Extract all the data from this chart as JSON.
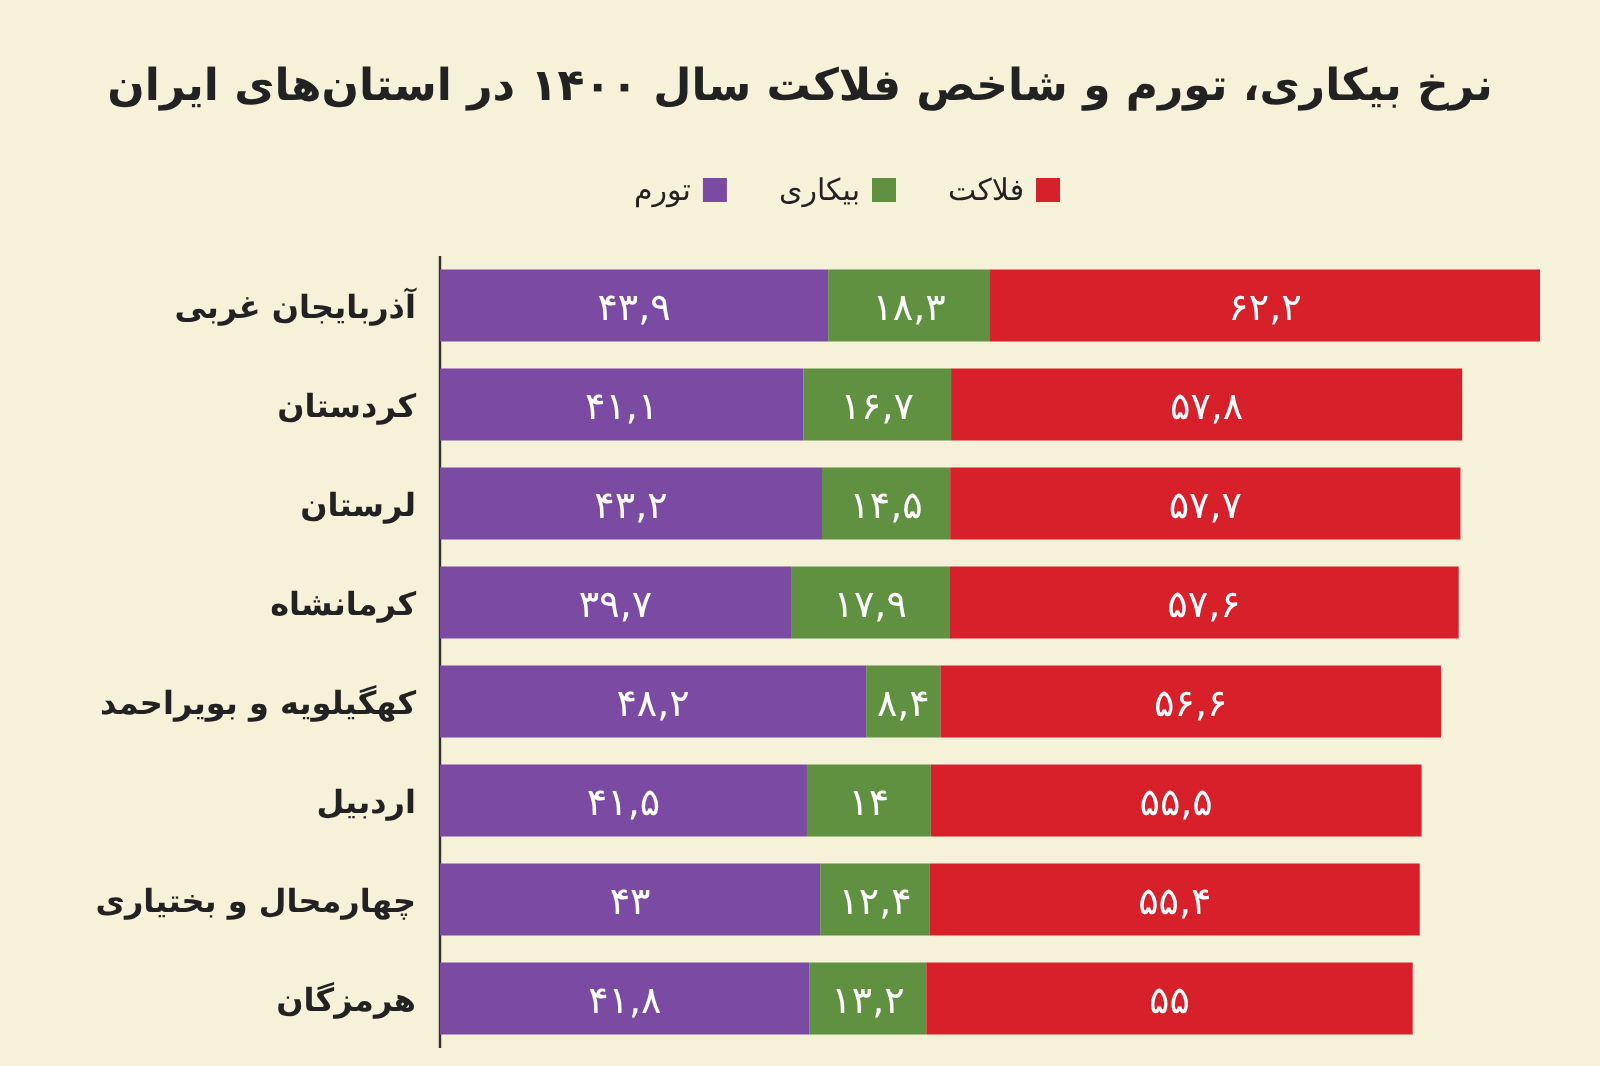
{
  "chart_data": {
    "type": "bar",
    "orientation": "horizontal",
    "stacked": true,
    "title": "نرخ بیکاری، تورم و شاخص فلاکت سال ۱۴۰۰ در استان‌های ایران",
    "categories": [
      "آذربایجان غربی",
      "کردستان",
      "لرستان",
      "کرمانشاه",
      "کهگیلویه و بویراحمد",
      "اردبیل",
      "چهارمحال و بختیاری",
      "هرمزگان"
    ],
    "series": [
      {
        "name": "تورم",
        "color": "#7b4ba3",
        "values": [
          43.9,
          41.1,
          43.2,
          39.7,
          48.2,
          41.5,
          43,
          41.8
        ],
        "value_labels": [
          "۴۳,۹",
          "۴۱,۱",
          "۴۳,۲",
          "۳۹,۷",
          "۴۸,۲",
          "۴۱,۵",
          "۴۳",
          "۴۱,۸"
        ]
      },
      {
        "name": "بیکاری",
        "color": "#5f9140",
        "values": [
          18.3,
          16.7,
          14.5,
          17.9,
          8.4,
          14,
          12.4,
          13.2
        ],
        "value_labels": [
          "۱۸,۳",
          "۱۶,۷",
          "۱۴,۵",
          "۱۷,۹",
          "۸,۴",
          "۱۴",
          "۱۲,۴",
          "۱۳,۲"
        ]
      },
      {
        "name": "فلاکت",
        "color": "#d7202a",
        "values": [
          62.2,
          57.8,
          57.7,
          57.6,
          56.6,
          55.5,
          55.4,
          55
        ],
        "value_labels": [
          "۶۲,۲",
          "۵۷,۸",
          "۵۷,۷",
          "۵۷,۶",
          "۵۶,۶",
          "۵۵,۵",
          "۵۵,۴",
          "۵۵"
        ]
      }
    ],
    "legend": "top"
  }
}
